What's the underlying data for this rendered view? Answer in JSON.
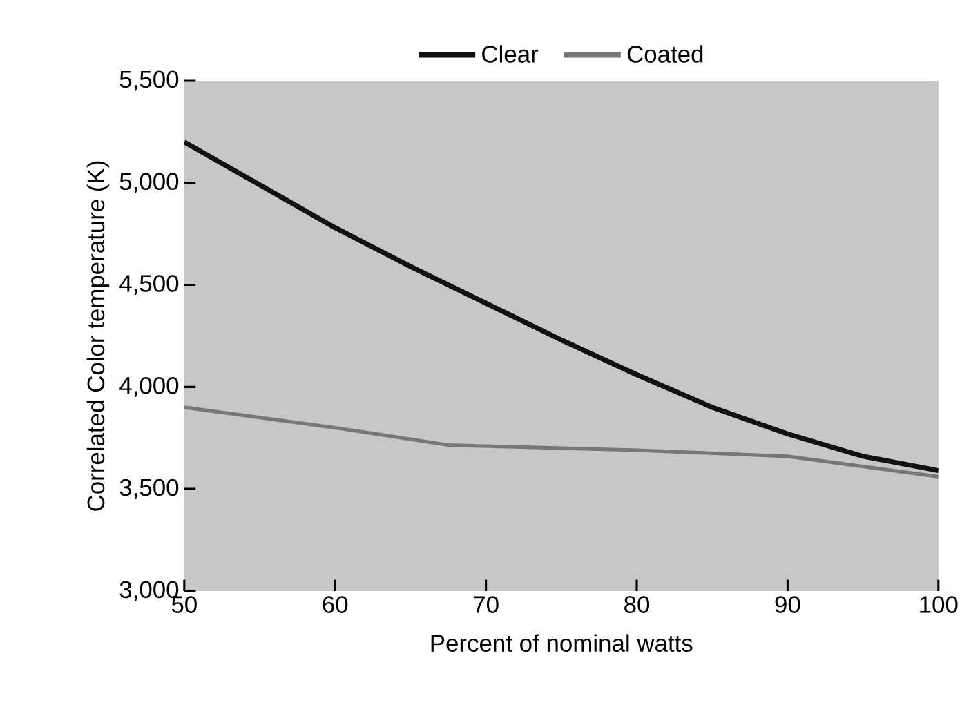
{
  "chart_data": {
    "type": "line",
    "xlabel": "Percent of nominal watts",
    "ylabel": "Correlated Color temperature (K)",
    "xlim": [
      50,
      100
    ],
    "ylim": [
      3000,
      5500
    ],
    "xticks": [
      50,
      60,
      70,
      80,
      90,
      100
    ],
    "yticks": [
      {
        "value": 3000,
        "label": "3,000"
      },
      {
        "value": 3500,
        "label": "3,500"
      },
      {
        "value": 4000,
        "label": "4,000"
      },
      {
        "value": 4500,
        "label": "4,500"
      },
      {
        "value": 5000,
        "label": "5,000"
      },
      {
        "value": 5500,
        "label": "5,500"
      }
    ],
    "legend": "top",
    "grid": false,
    "series": [
      {
        "name": "Clear",
        "color": "#111111",
        "x": [
          50,
          55,
          60,
          65,
          70,
          75,
          80,
          85,
          90,
          95,
          100
        ],
        "values": [
          5200,
          4990,
          4780,
          4590,
          4410,
          4230,
          4060,
          3900,
          3770,
          3660,
          3590
        ]
      },
      {
        "name": "Coated",
        "color": "#777777",
        "x": [
          50,
          60,
          67.5,
          80,
          90,
          100
        ],
        "values": [
          3900,
          3800,
          3715,
          3690,
          3660,
          3560
        ]
      }
    ]
  }
}
